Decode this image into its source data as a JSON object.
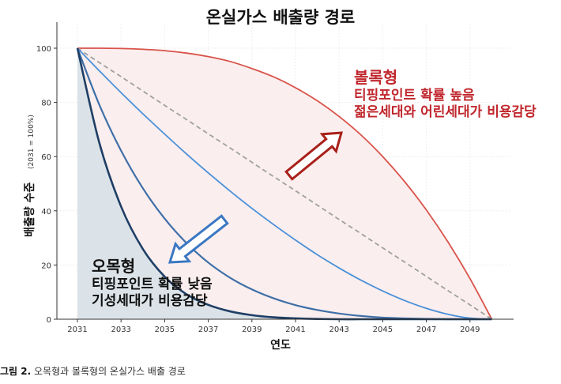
{
  "chart_data": {
    "type": "line",
    "title": "온실가스 배출량 경로",
    "xlabel": "연도",
    "ylabel": "배출량 수준",
    "ylabel_note": "(2031 = 100%)",
    "xlim": [
      2031,
      2050
    ],
    "ylim": [
      0,
      100
    ],
    "x_ticks": [
      "2031",
      "2033",
      "2035",
      "2037",
      "2039",
      "2041",
      "2043",
      "2045",
      "2047",
      "2049"
    ],
    "y_ticks": [
      "0",
      "20",
      "40",
      "60",
      "80",
      "100"
    ],
    "grid": true,
    "x": [
      2031,
      2032,
      2033,
      2034,
      2035,
      2036,
      2037,
      2038,
      2039,
      2040,
      2041,
      2042,
      2043,
      2044,
      2045,
      2046,
      2047,
      2048,
      2049,
      2050
    ],
    "series": [
      {
        "id": "red-convex",
        "color": "#d9534a",
        "values": [
          100,
          100,
          99.9,
          99.6,
          99.1,
          98.2,
          96.9,
          95.1,
          92.5,
          89.4,
          85.4,
          80.6,
          74.8,
          68.0,
          60.0,
          50.8,
          40.3,
          28.4,
          15.0,
          0
        ]
      },
      {
        "id": "linear",
        "color": "#a0a0a0",
        "dashed": true,
        "values": [
          100,
          94.7,
          89.5,
          84.2,
          78.9,
          73.7,
          68.4,
          63.2,
          57.9,
          52.6,
          47.4,
          42.1,
          36.8,
          31.6,
          26.3,
          21.1,
          15.8,
          10.5,
          5.3,
          0
        ]
      },
      {
        "id": "blue-light",
        "color": "#4a90d9",
        "values": [
          100,
          91.7,
          83.6,
          75.8,
          68.3,
          61.0,
          54.0,
          47.3,
          40.9,
          34.9,
          29.2,
          23.8,
          18.9,
          14.4,
          10.4,
          6.9,
          4.0,
          1.8,
          0.4,
          0
        ]
      },
      {
        "id": "blue-mid",
        "color": "#3f6fa8",
        "values": [
          100,
          79.2,
          62.2,
          48.3,
          37.1,
          28.1,
          20.9,
          15.3,
          11.0,
          7.7,
          5.2,
          3.4,
          2.1,
          1.2,
          0.6,
          0.3,
          0.1,
          0,
          0,
          0
        ]
      },
      {
        "id": "navy",
        "color": "#1f3f66",
        "values": [
          100,
          65.2,
          41.6,
          25.9,
          15.7,
          9.2,
          5.3,
          2.9,
          1.5,
          0.7,
          0.3,
          0.1,
          0,
          0,
          0,
          0,
          0,
          0,
          0,
          0
        ]
      }
    ],
    "annotations": {
      "red": {
        "title": "볼록형",
        "line1": "티핑포인트 확률 높음",
        "line2": "젊은세대와 어린세대가 비용감당",
        "color": "#c0272d"
      },
      "dark": {
        "title": "오목형",
        "line1": "티핑포인트 확률 낮음",
        "line2": "기성세대가 비용감당",
        "color": "#111111"
      }
    }
  },
  "caption": {
    "label": "그림 2.",
    "text": " 오목형과 볼록형의 온실가스 배출 경로"
  }
}
